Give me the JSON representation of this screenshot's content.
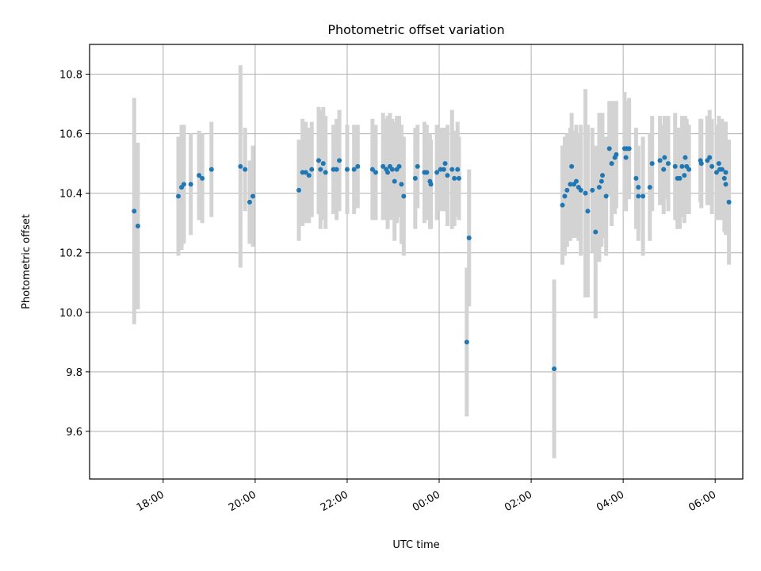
{
  "chart_data": {
    "type": "scatter",
    "title": "Photometric offset variation",
    "xlabel": "UTC time",
    "ylabel": "Photometric offset",
    "grid": true,
    "xlim_hours": [
      16.4,
      30.6
    ],
    "ylim": [
      9.44,
      10.9
    ],
    "x_ticks": [
      {
        "h": 18,
        "label": "18:00"
      },
      {
        "h": 20,
        "label": "20:00"
      },
      {
        "h": 22,
        "label": "22:00"
      },
      {
        "h": 24,
        "label": "00:00"
      },
      {
        "h": 26,
        "label": "02:00"
      },
      {
        "h": 28,
        "label": "04:00"
      },
      {
        "h": 30,
        "label": "06:00"
      }
    ],
    "y_ticks": [
      {
        "v": 9.6,
        "label": "9.6"
      },
      {
        "v": 9.8,
        "label": "9.8"
      },
      {
        "v": 10.0,
        "label": "10.0"
      },
      {
        "v": 10.2,
        "label": "10.2"
      },
      {
        "v": 10.4,
        "label": "10.4"
      },
      {
        "v": 10.6,
        "label": "10.6"
      },
      {
        "v": 10.8,
        "label": "10.8"
      }
    ],
    "series": [
      {
        "name": "offset",
        "color": "#1f77b4",
        "error_color": "#d3d3d3",
        "points": [
          [
            17.37,
            10.34,
            0.38
          ],
          [
            17.45,
            10.29,
            0.28
          ],
          [
            18.33,
            10.39,
            0.2
          ],
          [
            18.4,
            10.42,
            0.21
          ],
          [
            18.45,
            10.43,
            0.2
          ],
          [
            18.6,
            10.43,
            0.17
          ],
          [
            18.78,
            10.46,
            0.15
          ],
          [
            18.85,
            10.45,
            0.15
          ],
          [
            19.05,
            10.48,
            0.16
          ],
          [
            19.68,
            10.49,
            0.34
          ],
          [
            19.78,
            10.48,
            0.14
          ],
          [
            19.88,
            10.37,
            0.14
          ],
          [
            19.95,
            10.39,
            0.17
          ],
          [
            20.95,
            10.41,
            0.17
          ],
          [
            21.03,
            10.47,
            0.18
          ],
          [
            21.1,
            10.47,
            0.17
          ],
          [
            21.17,
            10.46,
            0.16
          ],
          [
            21.23,
            10.48,
            0.16
          ],
          [
            21.38,
            10.51,
            0.18
          ],
          [
            21.42,
            10.48,
            0.2
          ],
          [
            21.48,
            10.5,
            0.19
          ],
          [
            21.53,
            10.47,
            0.19
          ],
          [
            21.7,
            10.48,
            0.15
          ],
          [
            21.77,
            10.48,
            0.17
          ],
          [
            21.83,
            10.51,
            0.17
          ],
          [
            22.0,
            10.48,
            0.15
          ],
          [
            22.15,
            10.48,
            0.15
          ],
          [
            22.23,
            10.49,
            0.14
          ],
          [
            22.55,
            10.48,
            0.17
          ],
          [
            22.62,
            10.47,
            0.16
          ],
          [
            22.78,
            10.49,
            0.18
          ],
          [
            22.85,
            10.48,
            0.17
          ],
          [
            22.88,
            10.47,
            0.19
          ],
          [
            22.93,
            10.49,
            0.18
          ],
          [
            22.98,
            10.48,
            0.17
          ],
          [
            23.03,
            10.44,
            0.2
          ],
          [
            23.08,
            10.48,
            0.18
          ],
          [
            23.13,
            10.49,
            0.17
          ],
          [
            23.18,
            10.43,
            0.2
          ],
          [
            23.23,
            10.39,
            0.2
          ],
          [
            23.48,
            10.45,
            0.17
          ],
          [
            23.53,
            10.49,
            0.14
          ],
          [
            23.68,
            10.47,
            0.17
          ],
          [
            23.73,
            10.47,
            0.16
          ],
          [
            23.8,
            10.44,
            0.16
          ],
          [
            23.82,
            10.43,
            0.15
          ],
          [
            23.95,
            10.47,
            0.16
          ],
          [
            24.03,
            10.48,
            0.14
          ],
          [
            24.1,
            10.48,
            0.14
          ],
          [
            24.13,
            10.5,
            0.12
          ],
          [
            24.18,
            10.46,
            0.17
          ],
          [
            24.28,
            10.48,
            0.2
          ],
          [
            24.33,
            10.45,
            0.16
          ],
          [
            24.4,
            10.48,
            0.16
          ],
          [
            24.43,
            10.45,
            0.14
          ],
          [
            24.6,
            9.9,
            0.25
          ],
          [
            24.65,
            10.25,
            0.23
          ],
          [
            26.5,
            9.81,
            0.3
          ],
          [
            26.68,
            10.36,
            0.2
          ],
          [
            26.73,
            10.39,
            0.2
          ],
          [
            26.78,
            10.41,
            0.19
          ],
          [
            26.85,
            10.43,
            0.19
          ],
          [
            26.88,
            10.49,
            0.18
          ],
          [
            26.93,
            10.43,
            0.18
          ],
          [
            26.98,
            10.44,
            0.19
          ],
          [
            27.03,
            10.42,
            0.18
          ],
          [
            27.08,
            10.41,
            0.22
          ],
          [
            27.18,
            10.4,
            0.35
          ],
          [
            27.23,
            10.34,
            0.29
          ],
          [
            27.33,
            10.41,
            0.21
          ],
          [
            27.4,
            10.27,
            0.29
          ],
          [
            27.48,
            10.42,
            0.25
          ],
          [
            27.53,
            10.44,
            0.22
          ],
          [
            27.55,
            10.46,
            0.21
          ],
          [
            27.63,
            10.39,
            0.2
          ],
          [
            27.7,
            10.55,
            0.16
          ],
          [
            27.75,
            10.5,
            0.21
          ],
          [
            27.82,
            10.52,
            0.19
          ],
          [
            27.85,
            10.53,
            0.18
          ],
          [
            28.03,
            10.55,
            0.19
          ],
          [
            28.06,
            10.52,
            0.18
          ],
          [
            28.08,
            10.55,
            0.16
          ],
          [
            28.13,
            10.55,
            0.17
          ],
          [
            28.28,
            10.45,
            0.17
          ],
          [
            28.33,
            10.42,
            0.14
          ],
          [
            28.33,
            10.39,
            0.15
          ],
          [
            28.43,
            10.39,
            0.2
          ],
          [
            28.58,
            10.42,
            0.18
          ],
          [
            28.63,
            10.5,
            0.16
          ],
          [
            28.8,
            10.51,
            0.15
          ],
          [
            28.88,
            10.48,
            0.15
          ],
          [
            28.9,
            10.52,
            0.14
          ],
          [
            28.98,
            10.5,
            0.16
          ],
          [
            29.13,
            10.49,
            0.18
          ],
          [
            29.18,
            10.45,
            0.17
          ],
          [
            29.23,
            10.45,
            0.17
          ],
          [
            29.28,
            10.49,
            0.17
          ],
          [
            29.33,
            10.46,
            0.16
          ],
          [
            29.35,
            10.52,
            0.14
          ],
          [
            29.38,
            10.49,
            0.16
          ],
          [
            29.43,
            10.48,
            0.15
          ],
          [
            29.68,
            10.51,
            0.14
          ],
          [
            29.7,
            10.5,
            0.15
          ],
          [
            29.83,
            10.51,
            0.15
          ],
          [
            29.88,
            10.52,
            0.16
          ],
          [
            29.93,
            10.49,
            0.16
          ],
          [
            30.03,
            10.47,
            0.16
          ],
          [
            30.08,
            10.5,
            0.16
          ],
          [
            30.1,
            10.48,
            0.17
          ],
          [
            30.15,
            10.48,
            0.17
          ],
          [
            30.2,
            10.45,
            0.18
          ],
          [
            30.23,
            10.43,
            0.17
          ],
          [
            30.23,
            10.47,
            0.17
          ],
          [
            30.3,
            10.37,
            0.21
          ]
        ]
      }
    ]
  }
}
